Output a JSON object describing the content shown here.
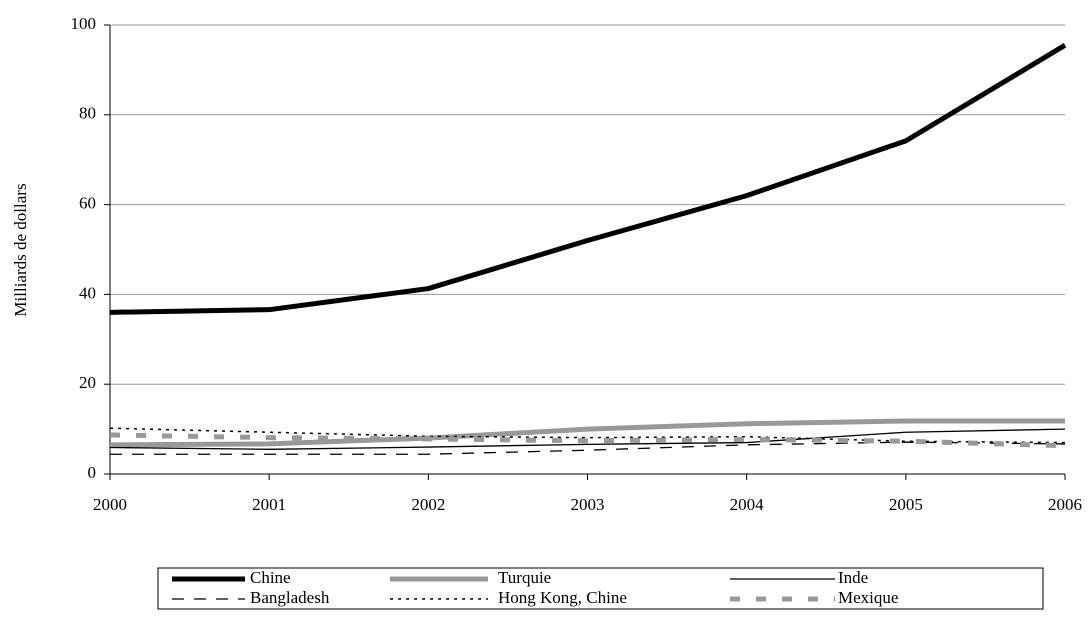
{
  "chart_data": {
    "type": "line",
    "y_label": "Milliards de dollars",
    "x": [
      2000,
      2001,
      2002,
      2003,
      2004,
      2005,
      2006
    ],
    "xlim": [
      2000,
      2006
    ],
    "xticks": [
      2000,
      2001,
      2002,
      2003,
      2004,
      2005,
      2006
    ],
    "ylim": [
      0,
      100
    ],
    "yticks": [
      0,
      20,
      40,
      60,
      80,
      100
    ],
    "grid": true,
    "legend": "bottom",
    "series": [
      {
        "name": "Chine",
        "color": "#000000",
        "values": [
          36,
          36.6,
          41.3,
          52,
          62,
          74.2,
          95.5
        ]
      },
      {
        "name": "Turquie",
        "color": "#999999",
        "values": [
          6.5,
          6.7,
          8,
          10,
          11.2,
          11.8,
          11.8
        ]
      },
      {
        "name": "Inde",
        "color": "#000000",
        "values": [
          5.9,
          5.5,
          6,
          6.6,
          7,
          9.3,
          10
        ]
      },
      {
        "name": "Bangladesh",
        "color": "#000000",
        "values": [
          4.4,
          4.4,
          4.4,
          5.3,
          6.5,
          7.1,
          6.7
        ]
      },
      {
        "name": "Hong Kong, Chine",
        "color": "#000000",
        "values": [
          10.2,
          9.3,
          8.4,
          8.1,
          8.3,
          7.3,
          7
        ]
      },
      {
        "name": "Mexique",
        "color": "#999999",
        "values": [
          8.7,
          8.1,
          7.8,
          7.4,
          7.7,
          7.3,
          6.3
        ]
      }
    ]
  }
}
